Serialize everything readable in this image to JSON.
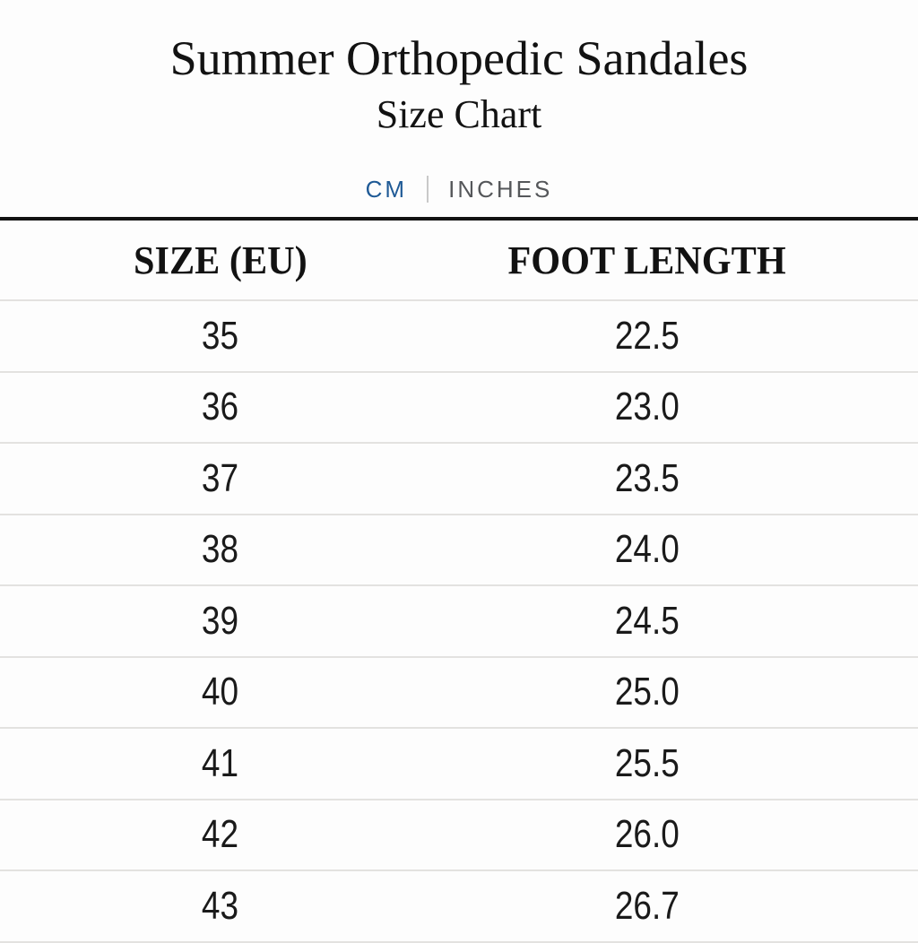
{
  "header": {
    "title": "Summer Orthopedic Sandales",
    "subtitle": "Size Chart"
  },
  "unit_toggle": {
    "cm_label": "CM",
    "inches_label": "INCHES",
    "active_unit": "CM"
  },
  "table": {
    "columns": [
      {
        "key": "size",
        "label": "SIZE (EU)"
      },
      {
        "key": "length",
        "label": "FOOT LENGTH"
      }
    ],
    "rows": [
      {
        "size": "35",
        "length": "22.5"
      },
      {
        "size": "36",
        "length": "23.0"
      },
      {
        "size": "37",
        "length": "23.5"
      },
      {
        "size": "38",
        "length": "24.0"
      },
      {
        "size": "39",
        "length": "24.5"
      },
      {
        "size": "40",
        "length": "25.0"
      },
      {
        "size": "41",
        "length": "25.5"
      },
      {
        "size": "42",
        "length": "26.0"
      },
      {
        "size": "43",
        "length": "26.7"
      }
    ]
  },
  "colors": {
    "accent": "#1f5a96",
    "inactive": "#55575a",
    "row_divider": "#e3e2e0",
    "toggle_divider": "#c9c9c9",
    "table_top_border": "#121212",
    "text": "#121212",
    "data_text": "#1a1a1a",
    "background": "#fdfdfd"
  }
}
